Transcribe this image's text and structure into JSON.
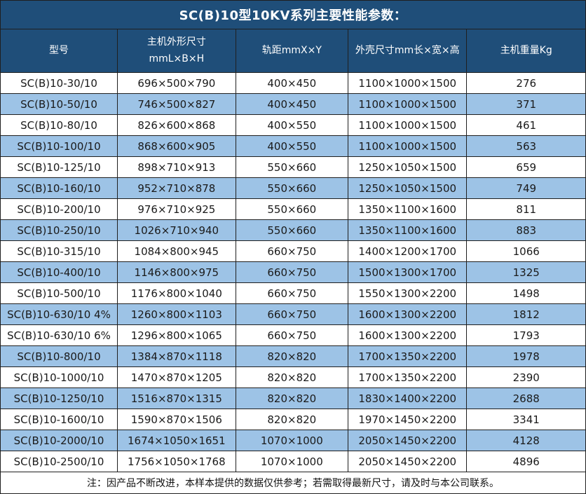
{
  "title": "SC(B)10型10KV系列主要性能参数：",
  "note": "注：因产品不断改进，本样本提供的数据仅供参考；若需取得最新尺寸，请及时与本公司联系。",
  "colors": {
    "header_bg": "#1F4E79",
    "header_text": "#FFFFFF",
    "stripe_row_bg": "#9DC3E6",
    "plain_row_bg": "#FFFFFF",
    "border": "#1F1F1F",
    "body_text": "#1A1A1A"
  },
  "table": {
    "headers": [
      {
        "lines": [
          "型号"
        ]
      },
      {
        "lines": [
          "主机外形尺寸",
          "mmL×B×H"
        ]
      },
      {
        "lines": [
          "轨距mmX×Y"
        ]
      },
      {
        "lines": [
          "外壳尺寸mm长×宽×高"
        ]
      },
      {
        "lines": [
          "主机重量Kg"
        ]
      }
    ],
    "rows": [
      [
        "SC(B)10-30/10",
        "696×500×790",
        "400×450",
        "1100×1000×1500",
        "276"
      ],
      [
        "SC(B)10-50/10",
        "746×500×827",
        "400×450",
        "1100×1000×1500",
        "371"
      ],
      [
        "SC(B)10-80/10",
        "826×600×868",
        "400×550",
        "1100×1000×1500",
        "461"
      ],
      [
        "SC(B)10-100/10",
        "868×600×905",
        "400×550",
        "1100×1000×1500",
        "563"
      ],
      [
        "SC(B)10-125/10",
        "898×710×913",
        "550×660",
        "1250×1050×1500",
        "659"
      ],
      [
        "SC(B)10-160/10",
        "952×710×878",
        "550×660",
        "1250×1050×1500",
        "749"
      ],
      [
        "SC(B)10-200/10",
        "976×710×925",
        "550×660",
        "1350×1100×1600",
        "811"
      ],
      [
        "SC(B)10-250/10",
        "1026×710×940",
        "550×660",
        "1350×1100×1600",
        "883"
      ],
      [
        "SC(B)10-315/10",
        "1084×800×945",
        "660×750",
        "1400×1200×1700",
        "1066"
      ],
      [
        "SC(B)10-400/10",
        "1146×800×975",
        "660×750",
        "1500×1300×1700",
        "1325"
      ],
      [
        "SC(B)10-500/10",
        "1176×800×1040",
        "660×750",
        "1550×1300×2200",
        "1498"
      ],
      [
        "SC(B)10-630/10 4%",
        "1260×800×1103",
        "660×750",
        "1600×1300×2200",
        "1812"
      ],
      [
        "SC(B)10-630/10 6%",
        "1296×800×1065",
        "660×750",
        "1600×1300×2200",
        "1793"
      ],
      [
        "SC(B)10-800/10",
        "1384×870×1118",
        "820×820",
        "1700×1350×2200",
        "1978"
      ],
      [
        "SC(B)10-1000/10",
        "1470×870×1205",
        "820×820",
        "1700×1350×2200",
        "2390"
      ],
      [
        "SC(B)10-1250/10",
        "1516×870×1315",
        "820×820",
        "1830×1400×2200",
        "2688"
      ],
      [
        "SC(B)10-1600/10",
        "1590×870×1506",
        "820×820",
        "1970×1450×2200",
        "3341"
      ],
      [
        "SC(B)10-2000/10",
        "1674×1050×1651",
        "1070×1000",
        "2050×1450×2200",
        "4128"
      ],
      [
        "SC(B)10-2500/10",
        "1756×1050×1768",
        "1070×1000",
        "2050×1450×2200",
        "4896"
      ]
    ]
  }
}
